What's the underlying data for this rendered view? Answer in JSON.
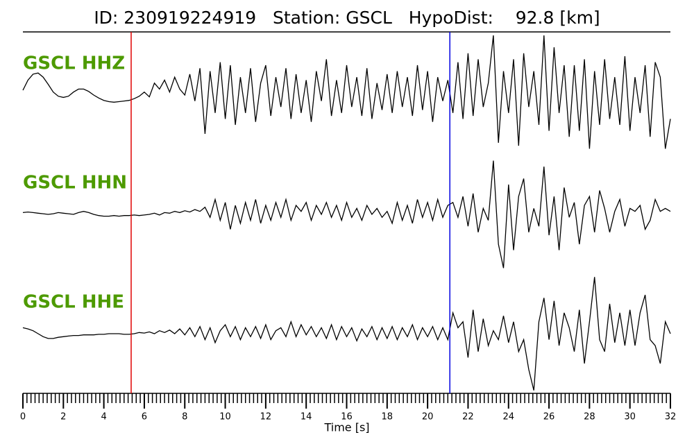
{
  "chart_data": {
    "type": "line",
    "title": "ID: 230919224919   Station: GSCL   HypoDist:    92.8 [km]",
    "xlabel": "Time [s]",
    "xlim": [
      0,
      32
    ],
    "xticks": [
      0,
      2,
      4,
      6,
      8,
      10,
      12,
      14,
      16,
      18,
      20,
      22,
      24,
      26,
      28,
      30,
      32
    ],
    "xminor_step": 0.2,
    "ylim": [
      -1,
      1
    ],
    "label_color": "#4d9a00",
    "picks": [
      {
        "x": 5.35,
        "color": "#e00000"
      },
      {
        "x": 21.1,
        "color": "#0000e0"
      }
    ],
    "x": [
      0,
      0.25,
      0.5,
      0.75,
      1,
      1.25,
      1.5,
      1.75,
      2,
      2.25,
      2.5,
      2.75,
      3,
      3.25,
      3.5,
      3.75,
      4,
      4.25,
      4.5,
      4.75,
      5,
      5.25,
      5.5,
      5.75,
      6,
      6.25,
      6.5,
      6.75,
      7,
      7.25,
      7.5,
      7.75,
      8,
      8.25,
      8.5,
      8.75,
      9,
      9.25,
      9.5,
      9.75,
      10,
      10.25,
      10.5,
      10.75,
      11,
      11.25,
      11.5,
      11.75,
      12,
      12.25,
      12.5,
      12.75,
      13,
      13.25,
      13.5,
      13.75,
      14,
      14.25,
      14.5,
      14.75,
      15,
      15.25,
      15.5,
      15.75,
      16,
      16.25,
      16.5,
      16.75,
      17,
      17.25,
      17.5,
      17.75,
      18,
      18.25,
      18.5,
      18.75,
      19,
      19.25,
      19.5,
      19.75,
      20,
      20.25,
      20.5,
      20.75,
      21,
      21.25,
      21.5,
      21.75,
      22,
      22.25,
      22.5,
      22.75,
      23,
      23.25,
      23.5,
      23.75,
      24,
      24.25,
      24.5,
      24.75,
      25,
      25.25,
      25.5,
      25.75,
      26,
      26.25,
      26.5,
      26.75,
      27,
      27.25,
      27.5,
      27.75,
      28,
      28.25,
      28.5,
      28.75,
      29,
      29.25,
      29.5,
      29.75,
      30,
      30.25,
      30.5,
      30.75,
      31,
      31.25,
      31.5,
      31.75,
      32
    ],
    "series": [
      {
        "name": "GSCL HHZ",
        "color": "#000000",
        "values": [
          0.08,
          0.25,
          0.35,
          0.37,
          0.3,
          0.18,
          0.05,
          -0.02,
          -0.04,
          -0.02,
          0.05,
          0.1,
          0.1,
          0.06,
          0.0,
          -0.05,
          -0.09,
          -0.11,
          -0.12,
          -0.11,
          -0.1,
          -0.09,
          -0.06,
          -0.02,
          0.05,
          -0.03,
          0.2,
          0.1,
          0.25,
          0.05,
          0.3,
          0.1,
          0.0,
          0.35,
          -0.1,
          0.45,
          -0.65,
          0.4,
          -0.3,
          0.55,
          -0.4,
          0.5,
          -0.5,
          0.3,
          -0.3,
          0.45,
          -0.45,
          0.2,
          0.5,
          -0.35,
          0.3,
          -0.2,
          0.45,
          -0.4,
          0.35,
          -0.3,
          0.25,
          -0.45,
          0.4,
          -0.1,
          0.6,
          -0.35,
          0.25,
          -0.3,
          0.5,
          -0.2,
          0.3,
          -0.35,
          0.45,
          -0.4,
          0.2,
          -0.25,
          0.35,
          -0.3,
          0.4,
          -0.2,
          0.3,
          -0.35,
          0.5,
          -0.25,
          0.4,
          -0.45,
          0.3,
          -0.1,
          0.25,
          -0.3,
          0.55,
          -0.4,
          0.7,
          -0.35,
          0.6,
          -0.2,
          0.2,
          1.0,
          -0.8,
          0.4,
          -0.3,
          0.6,
          -0.85,
          0.7,
          -0.2,
          0.4,
          -0.5,
          1.0,
          -0.6,
          0.8,
          -0.3,
          0.5,
          -0.7,
          0.5,
          -0.6,
          0.6,
          -0.9,
          0.4,
          -0.5,
          0.6,
          -0.4,
          0.3,
          -0.5,
          0.65,
          -0.6,
          0.3,
          -0.3,
          0.5,
          -0.7,
          0.55,
          0.3,
          -0.9,
          -0.4
        ]
      },
      {
        "name": "GSCL HHN",
        "color": "#000000",
        "values": [
          0.03,
          0.04,
          0.03,
          0.02,
          0.01,
          0.0,
          0.01,
          0.03,
          0.02,
          0.01,
          0.0,
          0.03,
          0.05,
          0.03,
          0.0,
          -0.02,
          -0.03,
          -0.03,
          -0.02,
          -0.03,
          -0.02,
          -0.02,
          -0.01,
          -0.02,
          -0.01,
          0.0,
          0.02,
          -0.01,
          0.03,
          0.02,
          0.05,
          0.03,
          0.06,
          0.04,
          0.08,
          0.05,
          0.12,
          -0.05,
          0.25,
          -0.1,
          0.2,
          -0.25,
          0.15,
          -0.15,
          0.2,
          -0.1,
          0.25,
          -0.15,
          0.15,
          -0.1,
          0.2,
          -0.05,
          0.25,
          -0.1,
          0.15,
          0.05,
          0.2,
          -0.1,
          0.15,
          0.0,
          0.2,
          -0.05,
          0.15,
          -0.1,
          0.2,
          -0.05,
          0.1,
          -0.1,
          0.15,
          0.0,
          0.1,
          -0.05,
          0.05,
          -0.15,
          0.2,
          -0.1,
          0.15,
          -0.15,
          0.25,
          -0.05,
          0.2,
          -0.1,
          0.25,
          -0.05,
          0.15,
          0.2,
          -0.05,
          0.3,
          -0.2,
          0.35,
          -0.3,
          0.1,
          -0.1,
          0.9,
          -0.5,
          -0.9,
          0.5,
          -0.6,
          0.3,
          0.6,
          -0.3,
          0.1,
          -0.2,
          0.8,
          -0.35,
          0.3,
          -0.6,
          0.45,
          -0.05,
          0.2,
          -0.5,
          0.15,
          0.3,
          -0.3,
          0.4,
          0.1,
          -0.3,
          0.05,
          0.25,
          -0.2,
          0.1,
          0.05,
          0.15,
          -0.25,
          -0.1,
          0.25,
          0.05,
          0.1,
          0.05
        ]
      },
      {
        "name": "GSCL HHE",
        "color": "#000000",
        "values": [
          0.1,
          0.08,
          0.05,
          0.0,
          -0.05,
          -0.08,
          -0.08,
          -0.06,
          -0.05,
          -0.04,
          -0.03,
          -0.03,
          -0.02,
          -0.02,
          -0.02,
          -0.01,
          -0.01,
          0.0,
          0.0,
          0.0,
          -0.01,
          -0.01,
          0.0,
          0.02,
          0.01,
          0.03,
          0.0,
          0.05,
          0.02,
          0.06,
          0.0,
          0.08,
          -0.02,
          0.1,
          -0.05,
          0.12,
          -0.1,
          0.1,
          -0.15,
          0.05,
          0.15,
          -0.05,
          0.12,
          -0.1,
          0.1,
          -0.05,
          0.12,
          -0.08,
          0.15,
          -0.1,
          0.05,
          0.1,
          -0.05,
          0.2,
          -0.05,
          0.15,
          -0.02,
          0.12,
          -0.05,
          0.1,
          -0.08,
          0.15,
          -0.1,
          0.12,
          -0.05,
          0.1,
          -0.12,
          0.08,
          -0.05,
          0.12,
          -0.1,
          0.1,
          -0.08,
          0.12,
          -0.1,
          0.1,
          -0.05,
          0.15,
          -0.1,
          0.1,
          -0.05,
          0.12,
          -0.1,
          0.1,
          -0.1,
          0.35,
          0.1,
          0.2,
          -0.4,
          0.4,
          -0.3,
          0.25,
          -0.2,
          0.05,
          -0.1,
          0.3,
          -0.15,
          0.2,
          -0.3,
          -0.1,
          -0.6,
          -0.95,
          0.2,
          0.6,
          -0.1,
          0.55,
          -0.2,
          0.35,
          0.1,
          -0.3,
          0.4,
          -0.5,
          0.2,
          0.95,
          -0.1,
          -0.3,
          0.5,
          -0.15,
          0.35,
          -0.2,
          0.4,
          -0.2,
          0.35,
          0.65,
          -0.1,
          -0.2,
          -0.5,
          0.2,
          0.0
        ]
      }
    ]
  }
}
